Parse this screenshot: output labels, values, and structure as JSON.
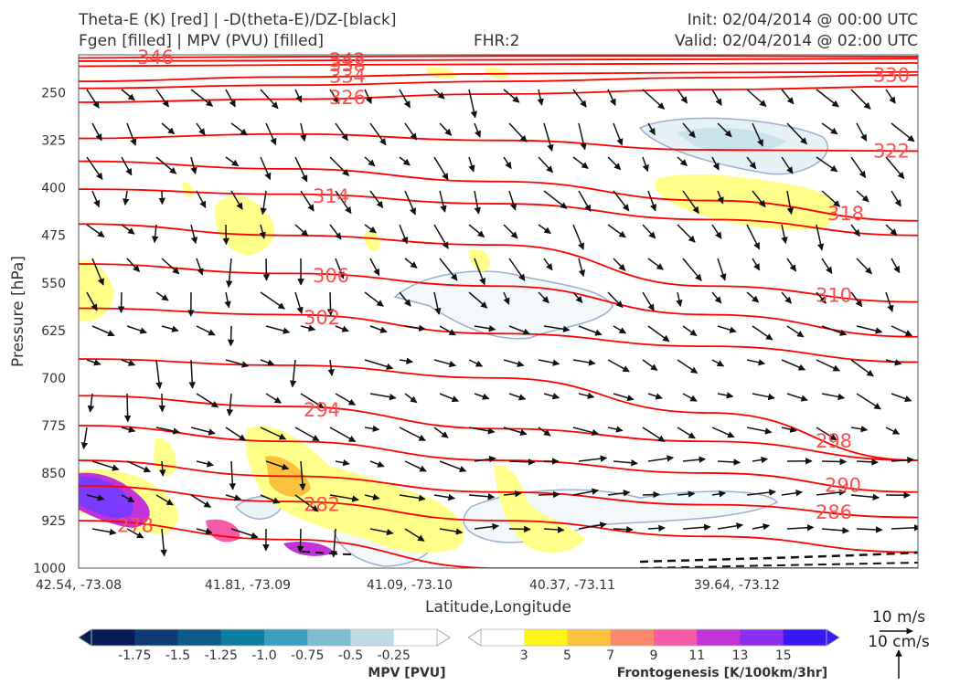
{
  "header": {
    "line1_left": "Theta-E (K) [red] | -D(theta-E)/DZ-[black]",
    "line2_left": "Fgen [filled] | MPV (PVU) [filled]",
    "fhr": "FHR:2",
    "init": "Init: 02/04/2014 @ 00:00 UTC",
    "valid": "Valid: 02/04/2014 @ 02:00 UTC"
  },
  "chart_data": {
    "type": "cross-section",
    "ylabel": "Pressure [hPa]",
    "xlabel": "Latitude,Longitude",
    "y_ticks": [
      "250",
      "325",
      "400",
      "475",
      "550",
      "625",
      "700",
      "775",
      "850",
      "925",
      "1000"
    ],
    "x_ticks": [
      "42.54, -73.08",
      "41.81, -73.09",
      "41.09, -73.10",
      "40.37, -73.11",
      "39.64, -73.12"
    ],
    "y_range_hpa": [
      1000,
      190
    ],
    "theta_e_contours": [
      {
        "label": "346",
        "p": [
          195,
          193,
          192,
          192,
          193
        ]
      },
      {
        "label": "342",
        "p": [
          200,
          199,
          198,
          197,
          196
        ]
      },
      {
        "label": "338",
        "p": [
          208,
          206,
          205,
          204,
          203
        ]
      },
      {
        "label": "334",
        "p": [
          232,
          225,
          220,
          218,
          217
        ]
      },
      {
        "label": "330",
        "p": [
          243,
          238,
          232,
          226,
          222
        ]
      },
      {
        "label": "326",
        "p": [
          265,
          260,
          252,
          245,
          240
        ]
      },
      {
        "label": "322",
        "p": [
          322,
          315,
          325,
          340,
          342
        ]
      },
      {
        "label": "318",
        "p": [
          358,
          370,
          390,
          420,
          452
        ]
      },
      {
        "label": "314",
        "p": [
          402,
          410,
          425,
          450,
          475
        ]
      },
      {
        "label": "310",
        "p": [
          457,
          475,
          490,
          555,
          580
        ]
      },
      {
        "label": "306",
        "p": [
          520,
          535,
          555,
          600,
          635
        ]
      },
      {
        "label": "302",
        "p": [
          590,
          600,
          630,
          650,
          675
        ]
      },
      {
        "label": "298",
        "p": [
          670,
          680,
          700,
          755,
          830
        ]
      },
      {
        "label": "294",
        "p": [
          728,
          745,
          780,
          800,
          830
        ]
      },
      {
        "label": "290",
        "p": [
          775,
          800,
          830,
          850,
          880
        ]
      },
      {
        "label": "286",
        "p": [
          830,
          855,
          880,
          900,
          920
        ]
      },
      {
        "label": "282",
        "p": [
          870,
          895,
          925,
          950,
          975
        ]
      },
      {
        "label": "278",
        "p": [
          925,
          955,
          1000,
          1000,
          1000
        ]
      }
    ],
    "mpv_colorbar": {
      "label": "MPV [PVU]",
      "ticks": [
        "-1.75",
        "-1.5",
        "-1.25",
        "-1.0",
        "-0.75",
        "-0.5",
        "-0.25"
      ],
      "colors": [
        "#081d58",
        "#0d3b75",
        "#0e5a8a",
        "#0b7ea1",
        "#3b9fbe",
        "#7fbcd2",
        "#bcdbe5",
        "#ffffff"
      ]
    },
    "fgen_colorbar": {
      "label": "Frontogenesis [K/100km/3hr]",
      "ticks": [
        "3",
        "5",
        "7",
        "9",
        "11",
        "13",
        "15"
      ],
      "colors": [
        "#ffffff",
        "#fff419",
        "#fcc23d",
        "#fb8a6d",
        "#f75aa6",
        "#c234d8",
        "#8a2ef0",
        "#3619f6"
      ]
    },
    "wind_keys": [
      "10 m/s",
      "10 cm/s"
    ],
    "colors": {
      "theta_e": "#ff0000",
      "contour_label": "#ff4d4d",
      "mpv_outline": "#9aaed1",
      "fgen_fill": "#ffff8a"
    }
  }
}
